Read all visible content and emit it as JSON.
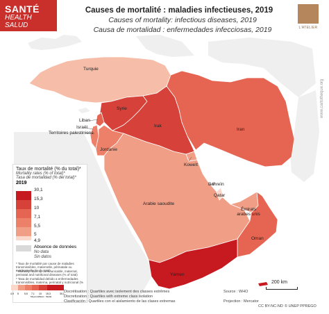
{
  "header": {
    "badge_line1": "SANTÉ",
    "badge_line2": "HEALTH",
    "badge_line3": "SALUD",
    "title_fr": "Causes de mortalité : maladies infectieuses, 2019",
    "title_en": "Causes of mortality: infectious diseases, 2019",
    "title_es": "Causa de mortalidad : enfermedades infecciosas, 2019",
    "logo_text": "L'ATELIER",
    "side_text": "www.cartotheque.org"
  },
  "colors": {
    "class1": "#c71a20",
    "class2": "#d6423a",
    "class3": "#e56552",
    "class4": "#ec8068",
    "class5": "#f19e86",
    "class6": "#f6bda8",
    "class7": "#fad9cc",
    "nodata": "#d9d9d9",
    "sea": "#ffffff",
    "other_land": "#efefef"
  },
  "countries": [
    {
      "name": "Turquie",
      "class": 6
    },
    {
      "name": "Syrie",
      "class": 2
    },
    {
      "name": "Irak",
      "class": 2
    },
    {
      "name": "Iran",
      "class": 3
    },
    {
      "name": "Liban",
      "class": 3
    },
    {
      "name": "Territoires palestiniens",
      "class": 4
    },
    {
      "name": "Israël",
      "class": 4
    },
    {
      "name": "Jordanie",
      "class": 4
    },
    {
      "name": "Koweït",
      "class": 5
    },
    {
      "name": "Bahreïn",
      "class": 7
    },
    {
      "name": "Qatar",
      "class": 7
    },
    {
      "name": "Émirats arabes unis",
      "class": 5
    },
    {
      "name": "Arabie saoudite",
      "class": 5
    },
    {
      "name": "Oman",
      "class": 3
    },
    {
      "name": "Yémen",
      "class": 1
    }
  ],
  "legend": {
    "title_fr": "Taux de mortalité (% du total)*",
    "title_en": "Mortality rates (% of total)*",
    "title_es": "Tasa de mortalidad (% del total)*",
    "year": "2019",
    "breaks": [
      "30,1",
      "15,3",
      "10",
      "7,1",
      "5,5",
      "5",
      "4,9"
    ],
    "nodata_fr": "Absence de données",
    "nodata_en": "No data",
    "nodata_es": "Sin datos",
    "note_fr": "* Taux de mortalité par cause de maladies transmissibles, maternelle, périnatale ou nutritionnelle (% du total)",
    "note_en": "* Mortality rates by communicable, maternal, perinatal and nutritional diseases (% of total)",
    "note_es": "* Tasa de mortalidad debido a enfermedades transmisibles, materna, perinatal y nutricional (% del total)"
  },
  "histogram_labels": [
    "4,9",
    "5",
    "5,5",
    "7,1",
    "10",
    "15,3",
    "30,1"
  ],
  "histogram_caption": [
    "Moyenne",
    "Mean",
    "Media"
  ],
  "footer": {
    "discretisation": "Discrétisation : Quartiles avec isolement des classes extrêmes",
    "discretization": "Discretization : Quartiles with extreme class isolation",
    "clasificacion": "Clasificación : Quartiles con el aislamiento de las clases extremas",
    "source": "Source : WHO",
    "projection": "Projection : Mercator",
    "license": "CC BY-NC-ND",
    "credit": "© UNEP PPREGO"
  },
  "scale_label": "200 km"
}
